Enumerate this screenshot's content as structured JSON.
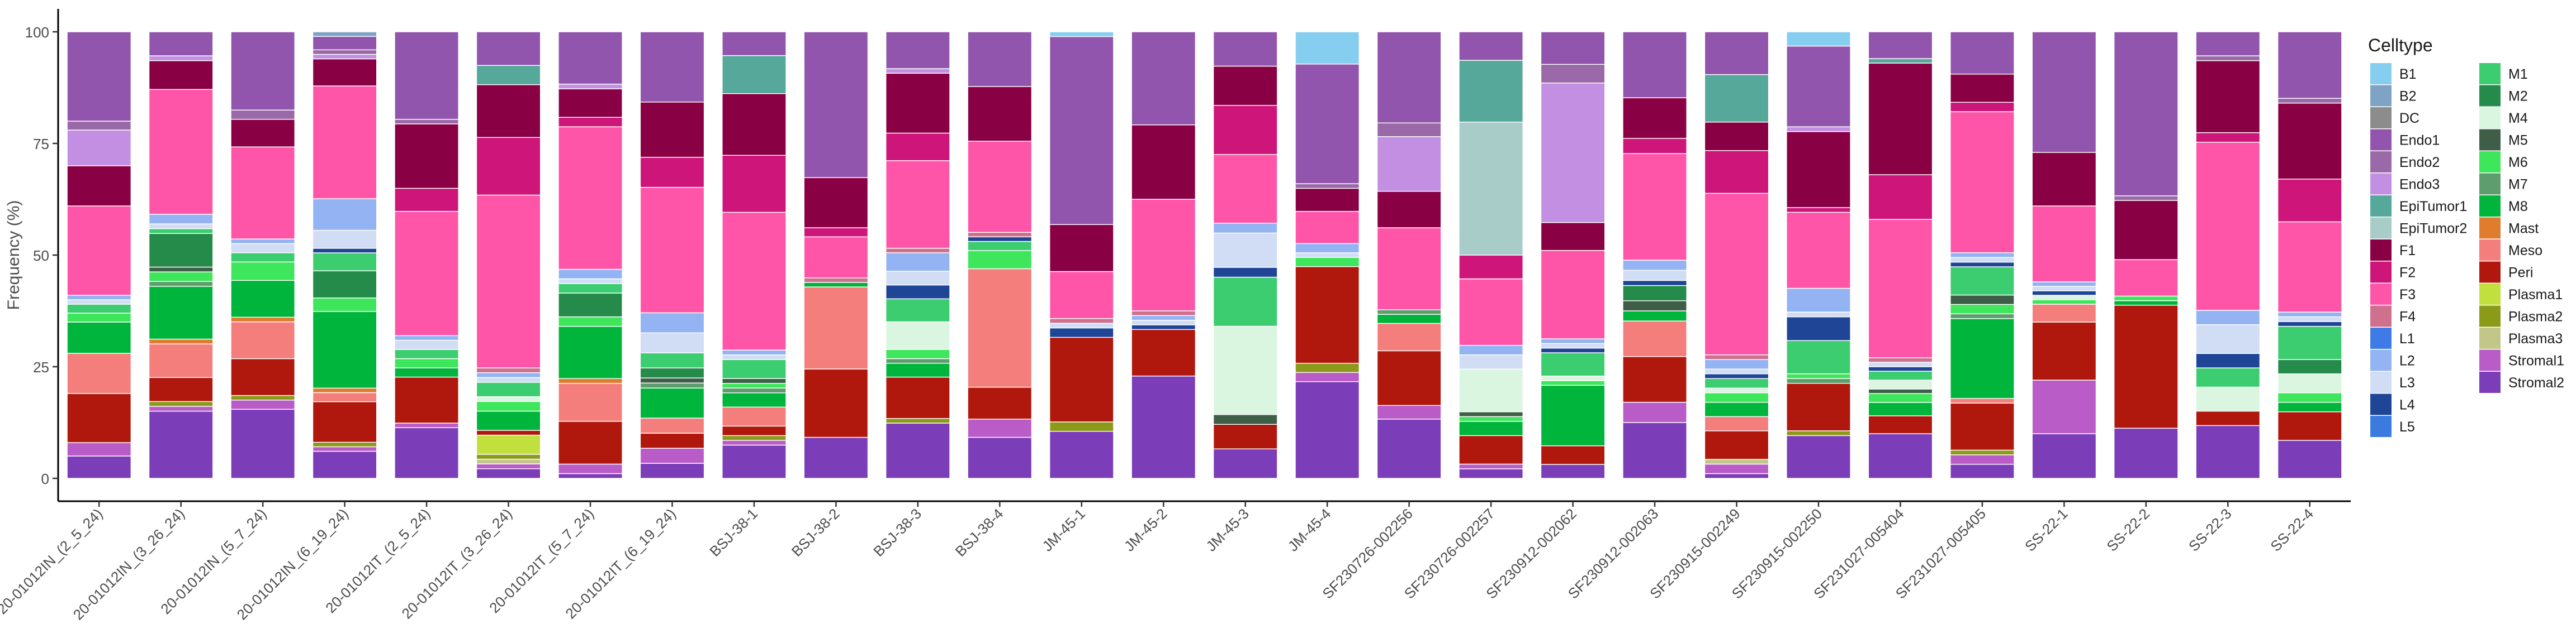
{
  "chart_data": {
    "type": "bar",
    "stacked": true,
    "ylabel": "Frequency (%)",
    "xlabel": "",
    "ylim": [
      0,
      100
    ],
    "yticks": [
      "0",
      "25",
      "50",
      "75",
      "100"
    ],
    "legend_title": "Celltype",
    "legend_position": "right",
    "categories": [
      "20-01012IN_(2_5_24)",
      "20-01012IN_(3_26_24)",
      "20-01012IN_(5_7_24)",
      "20-01012IN_(6_19_24)",
      "20-01012IT_(2_5_24)",
      "20-01012IT_(3_26_24)",
      "20-01012IT_(5_7_24)",
      "20-01012IT_(6_19_24)",
      "BSJ-38-1",
      "BSJ-38-2",
      "BSJ-38-3",
      "BSJ-38-4",
      "JM-45-1",
      "JM-45-2",
      "JM-45-3",
      "JM-45-4",
      "SF230726-002256",
      "SF230726-002257",
      "SF230912-002062",
      "SF230912-002063",
      "SF230915-002249",
      "SF230915-002250",
      "SF231027-005404",
      "SF231027-005405",
      "SS-22-1",
      "SS-22-2",
      "SS-22-3",
      "SS-22-4"
    ],
    "series": [
      {
        "name": "Stromal2",
        "color": "#7B3DB8",
        "values": [
          5,
          14,
          15,
          6,
          11,
          2,
          1,
          3,
          7,
          9,
          12,
          9,
          10,
          22,
          6,
          21,
          13,
          2,
          3,
          11,
          1,
          9,
          10,
          3,
          10,
          11,
          11,
          8
        ]
      },
      {
        "name": "Stromal1",
        "color": "#B95CC8",
        "values": [
          3,
          1,
          2,
          1,
          1,
          1,
          2,
          3,
          1,
          0,
          0,
          4,
          0,
          0,
          0,
          2,
          3,
          1,
          0,
          4,
          2,
          0,
          0,
          2,
          12,
          0,
          0,
          0
        ]
      },
      {
        "name": "Plasma3",
        "color": "#C2C789",
        "values": [
          0,
          0,
          0,
          0,
          0,
          1,
          0,
          0,
          0,
          0,
          0,
          0,
          0,
          0,
          0,
          0,
          0,
          0,
          0,
          0,
          1,
          0,
          0,
          0,
          0,
          0,
          0,
          0
        ]
      },
      {
        "name": "Plasma2",
        "color": "#8C9A1A",
        "values": [
          0,
          1,
          1,
          1,
          0,
          1,
          0,
          0,
          1,
          0,
          1,
          0,
          2,
          0,
          0,
          2,
          0,
          0,
          0,
          0,
          0,
          1,
          0,
          1,
          0,
          0,
          0,
          0
        ]
      },
      {
        "name": "Plasma1",
        "color": "#C2E03D",
        "values": [
          0,
          0,
          0,
          0,
          0,
          4,
          0,
          0,
          0,
          0,
          0,
          0,
          0,
          0,
          0,
          0,
          0,
          0,
          0,
          0,
          0,
          0,
          0,
          0,
          0,
          0,
          0,
          0
        ]
      },
      {
        "name": "Peri",
        "color": "#B0180D",
        "values": [
          11,
          5,
          8,
          9,
          10,
          1,
          9,
          3,
          2,
          15,
          9,
          7,
          18,
          10,
          5,
          21,
          12,
          6,
          4,
          9,
          6,
          10,
          4,
          10,
          13,
          27,
          3,
          6
        ]
      },
      {
        "name": "Meso",
        "color": "#F47E7C",
        "values": [
          9,
          7,
          8,
          2,
          0,
          0,
          8,
          3,
          4,
          18,
          0,
          26,
          0,
          0,
          0,
          0,
          6,
          0,
          0,
          7,
          3,
          0,
          0,
          1,
          4,
          0,
          0,
          0
        ]
      },
      {
        "name": "Mast",
        "color": "#E07C2E",
        "values": [
          0,
          1,
          1,
          1,
          0,
          0,
          1,
          0,
          0,
          0,
          0,
          0,
          0,
          0,
          0,
          0,
          0,
          0,
          0,
          0,
          0,
          0,
          0,
          0,
          0,
          0,
          0,
          0
        ]
      },
      {
        "name": "M8",
        "color": "#00B53C",
        "values": [
          7,
          11,
          8,
          17,
          2,
          4,
          11,
          6,
          3,
          1,
          3,
          0,
          0,
          0,
          0,
          0,
          2,
          3,
          13,
          2,
          3,
          0,
          3,
          17,
          0,
          1,
          0,
          2
        ]
      },
      {
        "name": "M7",
        "color": "#5E9E6E",
        "values": [
          0,
          1,
          0,
          0,
          0,
          0,
          0,
          1,
          1,
          0,
          1,
          0,
          0,
          0,
          0,
          0,
          1,
          0,
          0,
          0,
          0,
          1,
          0,
          1,
          0,
          0,
          0,
          0
        ]
      },
      {
        "name": "M6",
        "color": "#3DE65A",
        "values": [
          2,
          2,
          4,
          3,
          2,
          2,
          2,
          0,
          1,
          0,
          2,
          4,
          0,
          0,
          0,
          2,
          0,
          1,
          1,
          0,
          2,
          1,
          2,
          2,
          1,
          1,
          0,
          2
        ]
      },
      {
        "name": "M5",
        "color": "#3F5E48",
        "values": [
          0,
          1,
          0,
          0,
          0,
          0,
          0,
          1,
          1,
          0,
          0,
          0,
          0,
          0,
          2,
          0,
          0,
          1,
          0,
          2,
          0,
          0,
          1,
          2,
          0,
          0,
          0,
          0
        ]
      },
      {
        "name": "M4",
        "color": "#DAF5E0",
        "values": [
          0,
          0,
          0,
          0,
          0,
          1,
          0,
          0,
          0,
          0,
          6,
          0,
          0,
          0,
          18,
          0,
          0,
          9,
          1,
          0,
          1,
          0,
          2,
          0,
          1,
          0,
          5,
          4
        ]
      },
      {
        "name": "M2",
        "color": "#248B4A",
        "values": [
          0,
          7,
          0,
          6,
          0,
          0,
          5,
          2,
          0,
          0,
          0,
          0,
          0,
          0,
          0,
          0,
          0,
          0,
          0,
          3,
          0,
          0,
          0,
          0,
          0,
          0,
          0,
          3
        ]
      },
      {
        "name": "M1",
        "color": "#3CCD70",
        "values": [
          2,
          1,
          2,
          4,
          2,
          3,
          2,
          3,
          4,
          0,
          5,
          2,
          0,
          0,
          10,
          0,
          0,
          0,
          5,
          0,
          2,
          7,
          2,
          6,
          0,
          0,
          4,
          7
        ]
      },
      {
        "name": "L5",
        "color": "#3B7BE0",
        "values": [
          0,
          0,
          0,
          0,
          0,
          0,
          0,
          0,
          0,
          0,
          0,
          0,
          0,
          0,
          0,
          0,
          0,
          0,
          0,
          0,
          0,
          0,
          0,
          0,
          0,
          0,
          0,
          0
        ]
      },
      {
        "name": "L4",
        "color": "#1F4596",
        "values": [
          0,
          0,
          0,
          1,
          0,
          0,
          0,
          0,
          0,
          0,
          3,
          1,
          2,
          1,
          2,
          0,
          0,
          0,
          1,
          1,
          1,
          5,
          1,
          1,
          1,
          0,
          3,
          1
        ]
      },
      {
        "name": "L3",
        "color": "#D1DDF4",
        "values": [
          1,
          1,
          2,
          4,
          2,
          1,
          1,
          4,
          1,
          0,
          3,
          0,
          1,
          1,
          7,
          1,
          0,
          3,
          1,
          2,
          1,
          1,
          1,
          1,
          1,
          0,
          6,
          1
        ]
      },
      {
        "name": "L2",
        "color": "#93B3F2",
        "values": [
          1,
          2,
          1,
          7,
          1,
          1,
          2,
          4,
          1,
          0,
          4,
          0,
          0,
          1,
          2,
          2,
          0,
          2,
          1,
          2,
          2,
          5,
          0,
          1,
          1,
          0,
          3,
          1
        ]
      },
      {
        "name": "L1",
        "color": "#3F7BE6",
        "values": [
          0,
          0,
          0,
          0,
          0,
          0,
          0,
          0,
          0,
          0,
          0,
          0,
          0,
          0,
          0,
          0,
          0,
          0,
          0,
          0,
          0,
          0,
          0,
          0,
          0,
          0,
          0,
          0
        ]
      },
      {
        "name": "F4",
        "color": "#CE708E",
        "values": [
          0,
          0,
          0,
          0,
          0,
          1,
          0,
          0,
          0,
          1,
          1,
          1,
          1,
          1,
          0,
          0,
          0,
          0,
          0,
          0,
          1,
          0,
          1,
          0,
          0,
          0,
          0,
          0
        ]
      },
      {
        "name": "F3",
        "color": "#FF55A8",
        "values": [
          20,
          26,
          20,
          25,
          27,
          36,
          30,
          25,
          29,
          9,
          19,
          20,
          10,
          24,
          14,
          7,
          18,
          14,
          19,
          21,
          34,
          16,
          31,
          30,
          17,
          8,
          35,
          19
        ]
      },
      {
        "name": "F2",
        "color": "#CE1579",
        "values": [
          0,
          0,
          0,
          0,
          5,
          12,
          2,
          6,
          12,
          2,
          6,
          0,
          0,
          0,
          10,
          0,
          0,
          5,
          0,
          3,
          9,
          1,
          10,
          2,
          0,
          0,
          2,
          9
        ]
      },
      {
        "name": "F1",
        "color": "#8A0044",
        "values": [
          9,
          6,
          6,
          6,
          14,
          11,
          6,
          11,
          13,
          11,
          13,
          12,
          10,
          16,
          8,
          5,
          8,
          0,
          6,
          8,
          6,
          16,
          25,
          6,
          12,
          13,
          15,
          16
        ]
      },
      {
        "name": "EpiTumor2",
        "color": "#A8CCC7",
        "values": [
          0,
          0,
          0,
          0,
          0,
          0,
          0,
          0,
          0,
          0,
          0,
          0,
          0,
          0,
          0,
          0,
          0,
          28,
          0,
          0,
          0,
          0,
          0,
          0,
          0,
          0,
          0,
          0
        ]
      },
      {
        "name": "EpiTumor1",
        "color": "#55A89A",
        "values": [
          0,
          0,
          0,
          0,
          0,
          4,
          0,
          0,
          8,
          0,
          0,
          0,
          0,
          0,
          0,
          0,
          0,
          13,
          0,
          0,
          10,
          0,
          1,
          0,
          0,
          0,
          0,
          0
        ]
      },
      {
        "name": "Endo3",
        "color": "#C38FE3",
        "values": [
          8,
          1,
          0,
          1,
          0,
          0,
          1,
          0,
          0,
          0,
          1,
          0,
          0,
          0,
          0,
          0,
          12,
          0,
          30,
          0,
          0,
          1,
          0,
          0,
          0,
          0,
          0,
          0
        ]
      },
      {
        "name": "Endo2",
        "color": "#9A6AA8",
        "values": [
          2,
          0,
          2,
          1,
          1,
          0,
          0,
          0,
          0,
          0,
          0,
          0,
          0,
          0,
          0,
          1,
          3,
          0,
          4,
          0,
          0,
          0,
          0,
          0,
          0,
          1,
          1,
          1
        ]
      },
      {
        "name": "Endo1",
        "color": "#9255AD",
        "values": [
          20,
          5,
          17,
          3,
          19,
          7,
          11,
          14,
          5,
          32,
          8,
          12,
          40,
          20,
          7,
          26,
          20,
          6,
          7,
          13,
          9,
          17,
          6,
          9,
          27,
          36,
          5,
          14
        ]
      },
      {
        "name": "DC",
        "color": "#8C8C8C",
        "values": [
          0,
          0,
          0,
          0,
          0,
          0,
          0,
          0,
          0,
          0,
          0,
          0,
          0,
          0,
          0,
          0,
          0,
          0,
          0,
          0,
          0,
          0,
          0,
          0,
          0,
          0,
          0,
          0
        ]
      },
      {
        "name": "B2",
        "color": "#7FA3C4",
        "values": [
          0,
          0,
          0,
          1,
          0,
          0,
          0,
          0,
          0,
          0,
          0,
          0,
          0,
          0,
          0,
          0,
          0,
          0,
          0,
          0,
          0,
          0,
          0,
          0,
          0,
          0,
          0,
          0
        ]
      },
      {
        "name": "B1",
        "color": "#86CEF0",
        "values": [
          0,
          0,
          0,
          0,
          0,
          0,
          0,
          0,
          0,
          0,
          0,
          0,
          1,
          0,
          0,
          7,
          0,
          0,
          0,
          0,
          0,
          3,
          0,
          0,
          0,
          0,
          0,
          0
        ]
      }
    ],
    "legend_order": [
      "B1",
      "B2",
      "DC",
      "Endo1",
      "Endo2",
      "Endo3",
      "EpiTumor1",
      "EpiTumor2",
      "F1",
      "F2",
      "F3",
      "F4",
      "L1",
      "L2",
      "L3",
      "L4",
      "L5",
      "M1",
      "M2",
      "M4",
      "M5",
      "M6",
      "M7",
      "M8",
      "Mast",
      "Meso",
      "Peri",
      "Plasma1",
      "Plasma2",
      "Plasma3",
      "Stromal1",
      "Stromal2"
    ]
  }
}
